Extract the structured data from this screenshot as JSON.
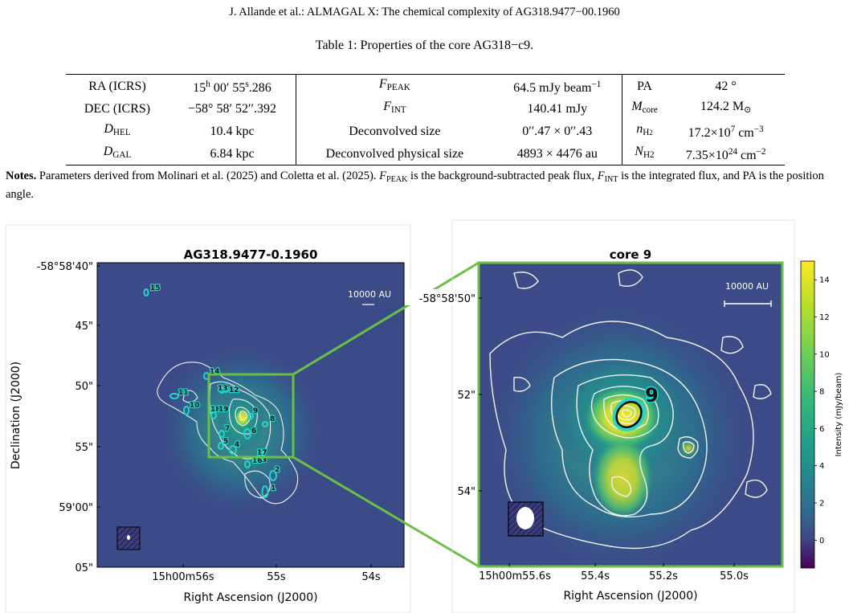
{
  "header": {
    "running_head": "J. Allande et al.: ALMAGAL X: The chemical complexity of AG318.9477−00.1960"
  },
  "table": {
    "caption": "Table 1: Properties of the core AG318−c9.",
    "rows": [
      [
        "RA (ICRS)",
        "15h 00′ 55s.286",
        "FPEAK",
        "64.5 mJy beam−1",
        "PA",
        "42 °"
      ],
      [
        "DEC (ICRS)",
        "−58° 58′ 52′′.392",
        "FINT",
        "140.41 mJy",
        "Mcore",
        "124.2 M⊙"
      ],
      [
        "DHEL",
        "10.4 kpc",
        "Deconvolved size",
        "0′′.47 × 0′′.43",
        "nH2",
        "17.2×107 cm−3"
      ],
      [
        "DGAL",
        "6.84 kpc",
        "Deconvolved physical size",
        "4893 × 4476 au",
        "NH2",
        "7.35×1024 cm−2"
      ]
    ]
  },
  "notes": {
    "label": "Notes.",
    "text": "Parameters derived from Molinari et al. (2025) and Coletta et al. (2025). FPEAK is the background-subtracted peak flux, FINT is the integrated flux, and PA is the position angle."
  },
  "figure": {
    "left_panel": {
      "title": "AG318.9477-0.1960",
      "ylabel": "Declination (J2000)",
      "xlabel": "Right Ascension (J2000)",
      "yticks": [
        "-58°58'40\"",
        "45\"",
        "50\"",
        "55\"",
        "59'00\"",
        "05\""
      ],
      "xticks": [
        "15h00m56s",
        "55s",
        "54s"
      ],
      "scalebar": "10000 AU",
      "core_labels": [
        "1",
        "2",
        "3",
        "4",
        "5",
        "6",
        "7",
        "8",
        "9",
        "10",
        "11",
        "12",
        "13",
        "14",
        "15",
        "16",
        "17",
        "18",
        "19"
      ]
    },
    "right_panel": {
      "title": "core 9",
      "yticks": [
        "-58°58'50\"",
        "52\"",
        "54\""
      ],
      "xticks": [
        "15h00m55.6s",
        "55.4s",
        "55.2s",
        "55.0s"
      ],
      "xlabel": "Right Ascension (J2000)",
      "scalebar": "10000 AU",
      "core_label": "9"
    },
    "colorbar": {
      "label": "Intensity (mJy/beam)",
      "ticks": [
        "14",
        "12",
        "10",
        "8",
        "6",
        "4",
        "2",
        "0"
      ],
      "range": [
        -1.5,
        15.0
      ]
    },
    "colors": {
      "zoom_box": "#6abf45",
      "core_ellipse": "#23d6c8",
      "contour": "#f2f2f2"
    }
  }
}
